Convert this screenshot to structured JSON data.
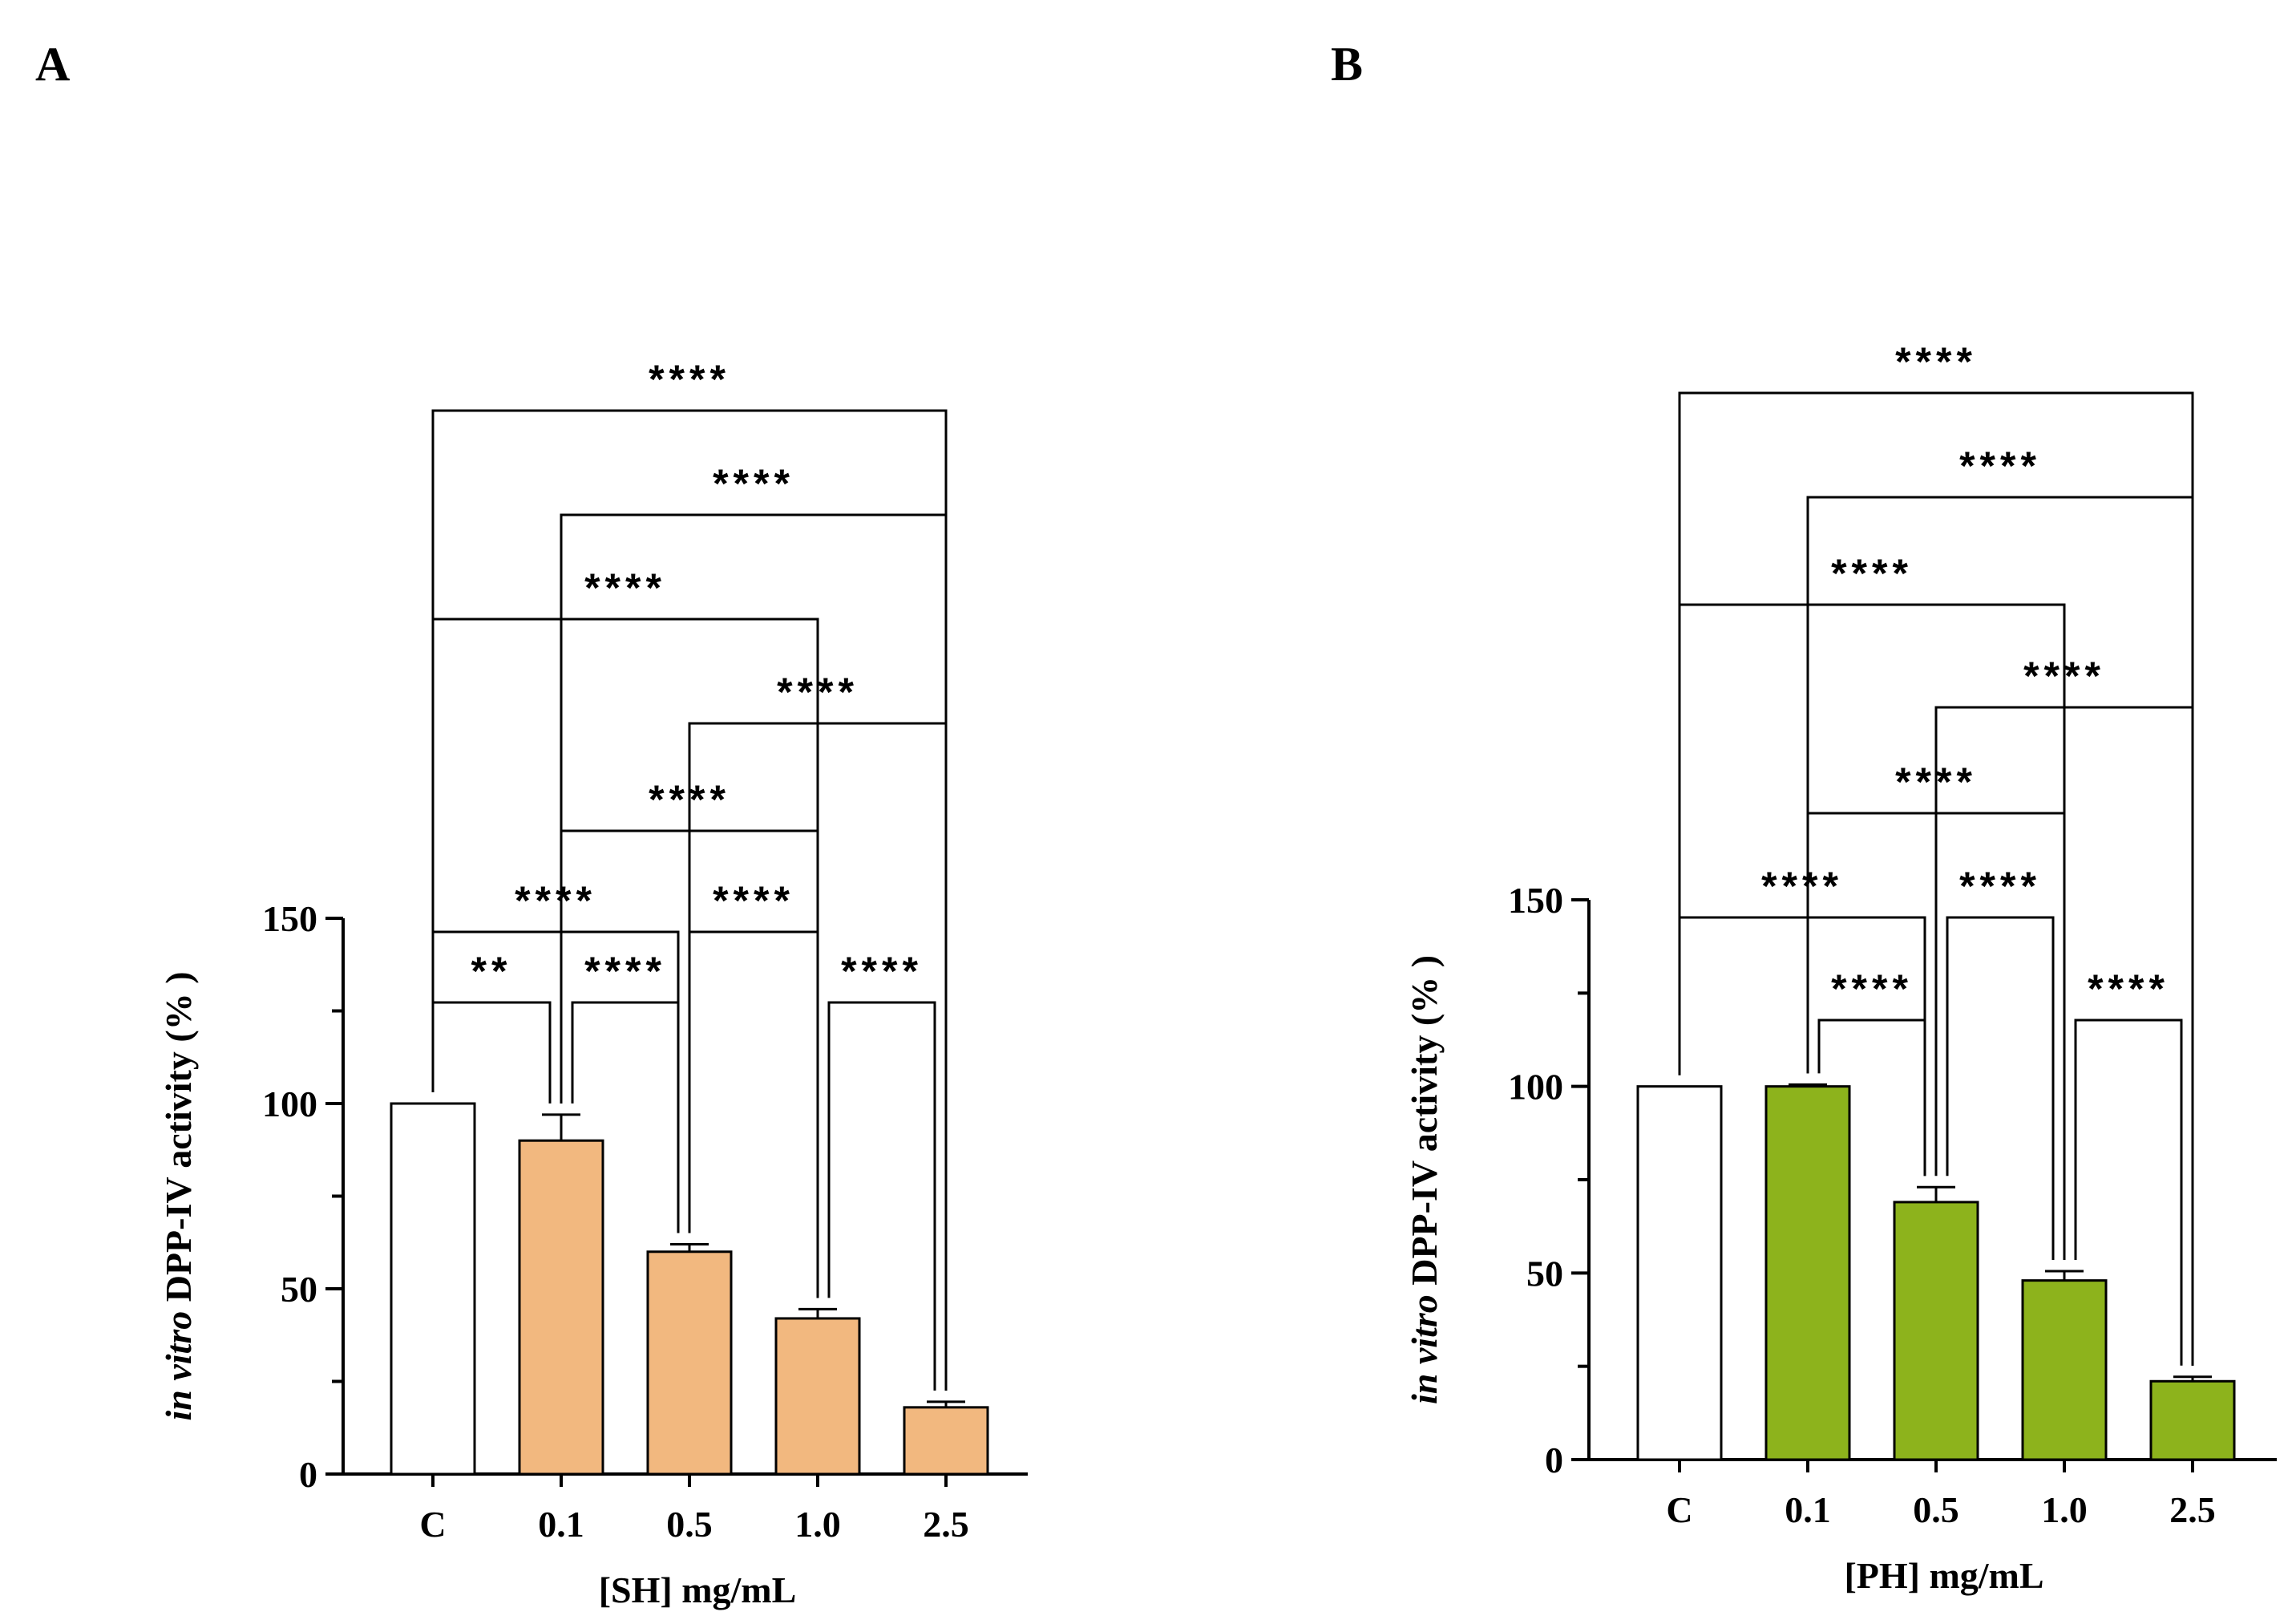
{
  "panels": [
    {
      "letter": "A",
      "chart_data": {
        "type": "bar",
        "categories": [
          "C",
          "0.1",
          "0.5",
          "1.0",
          "2.5"
        ],
        "values": [
          100,
          90,
          60,
          42,
          18
        ],
        "errors": [
          0,
          7,
          2,
          2.5,
          1.5
        ],
        "bar_colors": [
          "#ffffff",
          "#f2b87f",
          "#f2b87f",
          "#f2b87f",
          "#f2b87f"
        ],
        "ylim": [
          0,
          150
        ],
        "yticks": [
          0,
          50,
          100,
          150
        ],
        "xlabel": "[SH] mg/mL",
        "ylabel_italic": "in vitro",
        "ylabel_rest": " DPP-IV activity (% )",
        "comparisons": [
          {
            "from": 0,
            "to": 1,
            "label": "**"
          },
          {
            "from": 1,
            "to": 2,
            "label": "****"
          },
          {
            "from": 3,
            "to": 4,
            "label": "****"
          },
          {
            "from": 0,
            "to": 2,
            "label": "****"
          },
          {
            "from": 2,
            "to": 3,
            "label": "****"
          },
          {
            "from": 1,
            "to": 3,
            "label": "****"
          },
          {
            "from": 2,
            "to": 4,
            "label": "****"
          },
          {
            "from": 0,
            "to": 3,
            "label": "****"
          },
          {
            "from": 1,
            "to": 4,
            "label": "****"
          },
          {
            "from": 0,
            "to": 4,
            "label": "****"
          }
        ]
      }
    },
    {
      "letter": "B",
      "chart_data": {
        "type": "bar",
        "categories": [
          "C",
          "0.1",
          "0.5",
          "1.0",
          "2.5"
        ],
        "values": [
          100,
          100,
          69,
          48,
          21
        ],
        "errors": [
          0,
          0.5,
          4,
          2.5,
          1.2
        ],
        "bar_colors": [
          "#ffffff",
          "#8db31c",
          "#8db31c",
          "#8db31c",
          "#8db31c"
        ],
        "ylim": [
          0,
          150
        ],
        "yticks": [
          0,
          50,
          100,
          150
        ],
        "xlabel": "[PH] mg/mL",
        "ylabel_italic": "in vitro",
        "ylabel_rest": " DPP-IV activity (% )",
        "comparisons": [
          {
            "from": 1,
            "to": 2,
            "label": "****"
          },
          {
            "from": 3,
            "to": 4,
            "label": "****"
          },
          {
            "from": 0,
            "to": 2,
            "label": "****"
          },
          {
            "from": 2,
            "to": 3,
            "label": "****"
          },
          {
            "from": 1,
            "to": 3,
            "label": "****"
          },
          {
            "from": 2,
            "to": 4,
            "label": "****"
          },
          {
            "from": 0,
            "to": 3,
            "label": "****"
          },
          {
            "from": 1,
            "to": 4,
            "label": "****"
          },
          {
            "from": 0,
            "to": 4,
            "label": "****"
          }
        ]
      }
    }
  ]
}
